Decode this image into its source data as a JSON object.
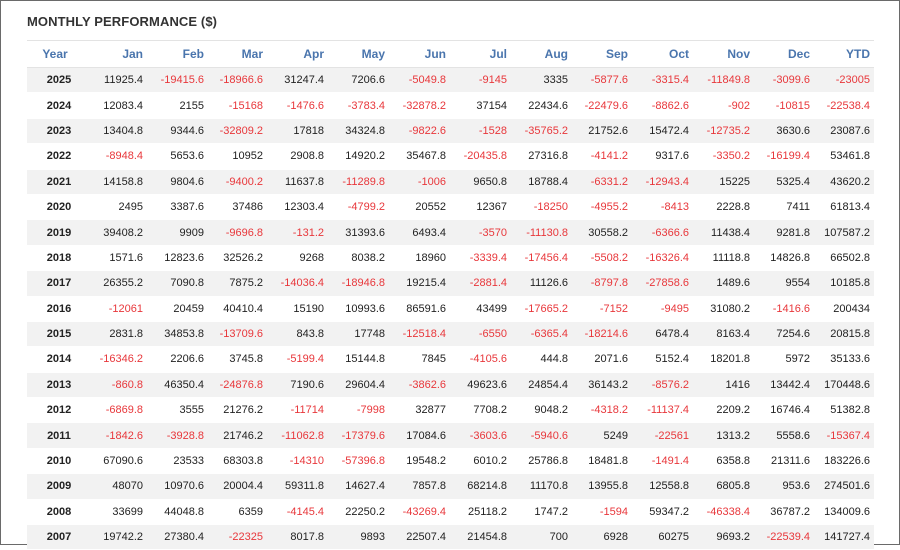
{
  "title": "MONTHLY PERFORMANCE ($)",
  "colors": {
    "negative": "#e8373b",
    "header": "#4a75ad",
    "stripe": "#f2f2f2"
  },
  "columns": [
    "Year",
    "Jan",
    "Feb",
    "Mar",
    "Apr",
    "May",
    "Jun",
    "Jul",
    "Aug",
    "Sep",
    "Oct",
    "Nov",
    "Dec",
    "YTD"
  ],
  "rows": [
    [
      "2025",
      "11925.4",
      "-19415.6",
      "-18966.6",
      "31247.4",
      "7206.6",
      "-5049.8",
      "-9145",
      "3335",
      "-5877.6",
      "-3315.4",
      "-11849.8",
      "-3099.6",
      "-23005"
    ],
    [
      "2024",
      "12083.4",
      "2155",
      "-15168",
      "-1476.6",
      "-3783.4",
      "-32878.2",
      "37154",
      "22434.6",
      "-22479.6",
      "-8862.6",
      "-902",
      "-10815",
      "-22538.4"
    ],
    [
      "2023",
      "13404.8",
      "9344.6",
      "-32809.2",
      "17818",
      "34324.8",
      "-9822.6",
      "-1528",
      "-35765.2",
      "21752.6",
      "15472.4",
      "-12735.2",
      "3630.6",
      "23087.6"
    ],
    [
      "2022",
      "-8948.4",
      "5653.6",
      "10952",
      "2908.8",
      "14920.2",
      "35467.8",
      "-20435.8",
      "27316.8",
      "-4141.2",
      "9317.6",
      "-3350.2",
      "-16199.4",
      "53461.8"
    ],
    [
      "2021",
      "14158.8",
      "9804.6",
      "-9400.2",
      "11637.8",
      "-11289.8",
      "-1006",
      "9650.8",
      "18788.4",
      "-6331.2",
      "-12943.4",
      "15225",
      "5325.4",
      "43620.2"
    ],
    [
      "2020",
      "2495",
      "3387.6",
      "37486",
      "12303.4",
      "-4799.2",
      "20552",
      "12367",
      "-18250",
      "-4955.2",
      "-8413",
      "2228.8",
      "7411",
      "61813.4"
    ],
    [
      "2019",
      "39408.2",
      "9909",
      "-9696.8",
      "-131.2",
      "31393.6",
      "6493.4",
      "-3570",
      "-11130.8",
      "30558.2",
      "-6366.6",
      "11438.4",
      "9281.8",
      "107587.2"
    ],
    [
      "2018",
      "1571.6",
      "12823.6",
      "32526.2",
      "9268",
      "8038.2",
      "18960",
      "-3339.4",
      "-17456.4",
      "-5508.2",
      "-16326.4",
      "11118.8",
      "14826.8",
      "66502.8"
    ],
    [
      "2017",
      "26355.2",
      "7090.8",
      "7875.2",
      "-14036.4",
      "-18946.8",
      "19215.4",
      "-2881.4",
      "11126.6",
      "-8797.8",
      "-27858.6",
      "1489.6",
      "9554",
      "10185.8"
    ],
    [
      "2016",
      "-12061",
      "20459",
      "40410.4",
      "15190",
      "10993.6",
      "86591.6",
      "43499",
      "-17665.2",
      "-7152",
      "-9495",
      "31080.2",
      "-1416.6",
      "200434"
    ],
    [
      "2015",
      "2831.8",
      "34853.8",
      "-13709.6",
      "843.8",
      "17748",
      "-12518.4",
      "-6550",
      "-6365.4",
      "-18214.6",
      "6478.4",
      "8163.4",
      "7254.6",
      "20815.8"
    ],
    [
      "2014",
      "-16346.2",
      "2206.6",
      "3745.8",
      "-5199.4",
      "15144.8",
      "7845",
      "-4105.6",
      "444.8",
      "2071.6",
      "5152.4",
      "18201.8",
      "5972",
      "35133.6"
    ],
    [
      "2013",
      "-860.8",
      "46350.4",
      "-24876.8",
      "7190.6",
      "29604.4",
      "-3862.6",
      "49623.6",
      "24854.4",
      "36143.2",
      "-8576.2",
      "1416",
      "13442.4",
      "170448.6"
    ],
    [
      "2012",
      "-6869.8",
      "3555",
      "21276.2",
      "-11714",
      "-7998",
      "32877",
      "7708.2",
      "9048.2",
      "-4318.2",
      "-11137.4",
      "2209.2",
      "16746.4",
      "51382.8"
    ],
    [
      "2011",
      "-1842.6",
      "-3928.8",
      "21746.2",
      "-11062.8",
      "-17379.6",
      "17084.6",
      "-3603.6",
      "-5940.6",
      "5249",
      "-22561",
      "1313.2",
      "5558.6",
      "-15367.4"
    ],
    [
      "2010",
      "67090.6",
      "23533",
      "68303.8",
      "-14310",
      "-57396.8",
      "19548.2",
      "6010.2",
      "25786.8",
      "18481.8",
      "-1491.4",
      "6358.8",
      "21311.6",
      "183226.6"
    ],
    [
      "2009",
      "48070",
      "10970.6",
      "20004.4",
      "59311.8",
      "14627.4",
      "7857.8",
      "68214.8",
      "11170.8",
      "13955.8",
      "12558.8",
      "6805.8",
      "953.6",
      "274501.6"
    ],
    [
      "2008",
      "33699",
      "44048.8",
      "6359",
      "-4145.4",
      "22250.2",
      "-43269.4",
      "25118.2",
      "1747.2",
      "-1594",
      "59347.2",
      "-46338.4",
      "36787.2",
      "134009.6"
    ],
    [
      "2007",
      "19742.2",
      "27380.4",
      "-22325",
      "8017.8",
      "9893",
      "22507.4",
      "21454.8",
      "700",
      "6928",
      "60275",
      "9693.2",
      "-22539.4",
      "141727.4"
    ]
  ]
}
